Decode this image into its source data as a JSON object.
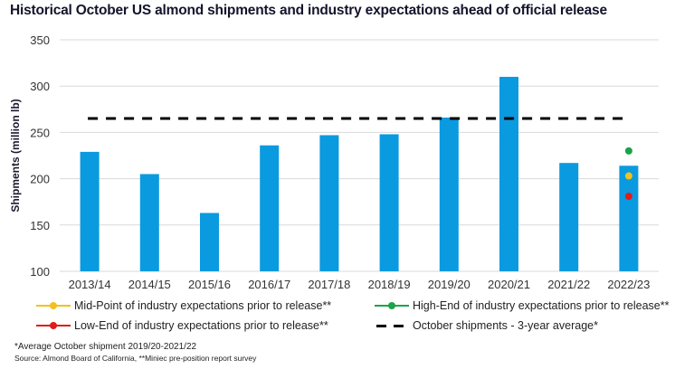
{
  "chart_data": {
    "type": "bar",
    "title": "Historical October US almond shipments and industry expectations ahead of official release",
    "xlabel": "",
    "ylabel": "Shipments (million lb)",
    "ylim": [
      100,
      350
    ],
    "yticks": [
      100,
      150,
      200,
      250,
      300,
      350
    ],
    "grid": true,
    "categories": [
      "2013/14",
      "2014/15",
      "2015/16",
      "2016/17",
      "2017/18",
      "2018/19",
      "2019/20",
      "2020/21",
      "2021/22",
      "2022/23"
    ],
    "series": [
      {
        "name": "October shipments",
        "type": "bar",
        "color": "#0a9ae0",
        "values": [
          229,
          205,
          163,
          236,
          247,
          248,
          266,
          310,
          217,
          214
        ]
      },
      {
        "name": "October shipments - 3-year average*",
        "type": "dashed-line",
        "color": "#000000",
        "values": [
          265,
          265,
          265,
          265,
          265,
          265,
          265,
          265,
          265,
          265
        ]
      },
      {
        "name": "High-End of industry expectations prior to release**",
        "type": "point",
        "color": "#1aa34a",
        "category": "2022/23",
        "value": 230
      },
      {
        "name": "Mid-Point of industry expectations prior to release**",
        "type": "point",
        "color": "#f2c11d",
        "category": "2022/23",
        "value": 203
      },
      {
        "name": "Low-End of industry expectations prior to release**",
        "type": "point",
        "color": "#e21b1b",
        "category": "2022/23",
        "value": 181
      }
    ],
    "legend": {
      "placement": "bottom",
      "items": [
        {
          "label": "Mid-Point of industry expectations prior to release**",
          "color": "#f2c11d",
          "kind": "line-dot"
        },
        {
          "label": "High-End of industry expectations prior to release**",
          "color": "#1aa34a",
          "kind": "line-dot"
        },
        {
          "label": "Low-End of industry expectations prior to release**",
          "color": "#e21b1b",
          "kind": "line-dot"
        },
        {
          "label": "October shipments - 3-year average*",
          "color": "#000000",
          "kind": "dashed"
        }
      ]
    },
    "footnotes": [
      "*Average October shipment 2019/20-2021/22",
      "Source: Almond Board of California, **Miniec pre-position report survey"
    ]
  }
}
